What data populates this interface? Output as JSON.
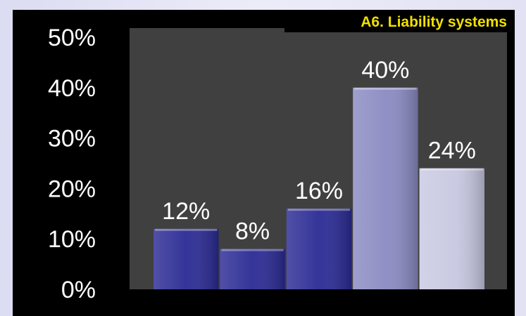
{
  "chart_data": {
    "type": "bar",
    "title": "A6. Liability systems",
    "categories": [
      "",
      "",
      "",
      "",
      ""
    ],
    "values": [
      12,
      8,
      16,
      40,
      24
    ],
    "value_labels": [
      "12%",
      "8%",
      "16%",
      "40%",
      "24%"
    ],
    "ylim": [
      0,
      50
    ],
    "yticks": [
      0,
      10,
      20,
      30,
      40,
      50
    ],
    "ytick_labels": [
      "0%",
      "10%",
      "20%",
      "30%",
      "40%",
      "50%"
    ],
    "xlabel": "",
    "ylabel": "",
    "grid": false,
    "legend": "none",
    "bar_colors": [
      "#2a2a94",
      "#2a2a94",
      "#2a2a94",
      "#8a8ac2",
      "#c8c8e2"
    ]
  },
  "colors": {
    "panel_background": "#000000",
    "plot_background": "#404040",
    "title_text": "#f0e000",
    "label_text": "#ffffff"
  }
}
